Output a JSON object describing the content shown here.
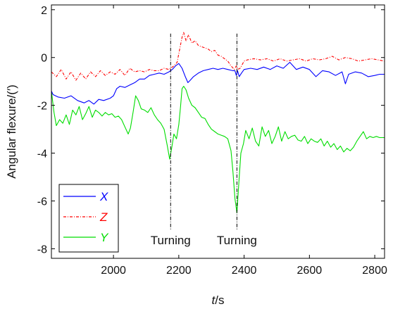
{
  "chart_data": {
    "type": "line",
    "title": "",
    "xlabel": {
      "var": "t",
      "unit": "/s"
    },
    "ylabel": "Angular flexure/(′)",
    "xlim": [
      1810,
      2830
    ],
    "ylim": [
      -8.4,
      2.2
    ],
    "xticks": [
      2000,
      2200,
      2400,
      2600,
      2800
    ],
    "yticks": [
      2,
      0,
      -2,
      -4,
      -6,
      -8
    ],
    "grid": false,
    "legend_position": "bottom-left",
    "series": [
      {
        "name": "X",
        "color": "#0000ff",
        "dash": "solid",
        "points": [
          [
            1810,
            -1.4
          ],
          [
            1815,
            -1.55
          ],
          [
            1830,
            -1.65
          ],
          [
            1850,
            -1.7
          ],
          [
            1870,
            -1.6
          ],
          [
            1890,
            -1.8
          ],
          [
            1910,
            -1.9
          ],
          [
            1925,
            -1.8
          ],
          [
            1940,
            -1.95
          ],
          [
            1955,
            -1.75
          ],
          [
            1970,
            -1.8
          ],
          [
            1990,
            -1.7
          ],
          [
            2000,
            -1.6
          ],
          [
            2010,
            -1.3
          ],
          [
            2020,
            -1.2
          ],
          [
            2035,
            -1.25
          ],
          [
            2050,
            -1.15
          ],
          [
            2065,
            -1.05
          ],
          [
            2080,
            -0.9
          ],
          [
            2095,
            -0.9
          ],
          [
            2110,
            -0.75
          ],
          [
            2125,
            -0.7
          ],
          [
            2140,
            -0.65
          ],
          [
            2155,
            -0.7
          ],
          [
            2170,
            -0.6
          ],
          [
            2180,
            -0.5
          ],
          [
            2190,
            -0.35
          ],
          [
            2200,
            -0.25
          ],
          [
            2210,
            -0.45
          ],
          [
            2220,
            -0.8
          ],
          [
            2228,
            -1.05
          ],
          [
            2235,
            -0.95
          ],
          [
            2245,
            -0.8
          ],
          [
            2260,
            -0.65
          ],
          [
            2275,
            -0.55
          ],
          [
            2290,
            -0.5
          ],
          [
            2305,
            -0.45
          ],
          [
            2320,
            -0.5
          ],
          [
            2335,
            -0.45
          ],
          [
            2350,
            -0.5
          ],
          [
            2365,
            -0.55
          ],
          [
            2372,
            -0.55
          ],
          [
            2376,
            -0.75
          ],
          [
            2380,
            -0.55
          ],
          [
            2385,
            -0.8
          ],
          [
            2392,
            -0.65
          ],
          [
            2400,
            -0.5
          ],
          [
            2420,
            -0.45
          ],
          [
            2440,
            -0.5
          ],
          [
            2460,
            -0.4
          ],
          [
            2480,
            -0.5
          ],
          [
            2500,
            -0.35
          ],
          [
            2520,
            -0.45
          ],
          [
            2540,
            -0.2
          ],
          [
            2560,
            -0.5
          ],
          [
            2580,
            -0.4
          ],
          [
            2600,
            -0.5
          ],
          [
            2620,
            -0.8
          ],
          [
            2640,
            -0.55
          ],
          [
            2660,
            -0.6
          ],
          [
            2680,
            -0.75
          ],
          [
            2700,
            -0.6
          ],
          [
            2710,
            -1.1
          ],
          [
            2720,
            -0.7
          ],
          [
            2740,
            -0.6
          ],
          [
            2760,
            -0.65
          ],
          [
            2780,
            -0.8
          ],
          [
            2800,
            -0.75
          ],
          [
            2815,
            -0.7
          ],
          [
            2830,
            -0.7
          ]
        ]
      },
      {
        "name": "Z",
        "color": "#ff0000",
        "dash": "dashdot",
        "points": [
          [
            1810,
            -0.6
          ],
          [
            1825,
            -0.8
          ],
          [
            1840,
            -0.5
          ],
          [
            1855,
            -0.9
          ],
          [
            1870,
            -0.6
          ],
          [
            1885,
            -0.95
          ],
          [
            1900,
            -0.65
          ],
          [
            1915,
            -0.9
          ],
          [
            1930,
            -0.6
          ],
          [
            1945,
            -0.8
          ],
          [
            1960,
            -0.55
          ],
          [
            1975,
            -0.75
          ],
          [
            1990,
            -0.6
          ],
          [
            2005,
            -0.7
          ],
          [
            2020,
            -0.5
          ],
          [
            2035,
            -0.75
          ],
          [
            2050,
            -0.45
          ],
          [
            2065,
            -0.6
          ],
          [
            2080,
            -0.55
          ],
          [
            2095,
            -0.6
          ],
          [
            2110,
            -0.5
          ],
          [
            2125,
            -0.55
          ],
          [
            2140,
            -0.55
          ],
          [
            2155,
            -0.45
          ],
          [
            2170,
            -0.5
          ],
          [
            2185,
            -0.35
          ],
          [
            2195,
            -0.2
          ],
          [
            2202,
            0.3
          ],
          [
            2210,
            0.85
          ],
          [
            2215,
            1.05
          ],
          [
            2222,
            0.7
          ],
          [
            2230,
            0.95
          ],
          [
            2240,
            0.6
          ],
          [
            2250,
            0.7
          ],
          [
            2260,
            0.5
          ],
          [
            2270,
            0.45
          ],
          [
            2280,
            0.4
          ],
          [
            2290,
            0.35
          ],
          [
            2300,
            0.25
          ],
          [
            2310,
            0.3
          ],
          [
            2320,
            0.1
          ],
          [
            2330,
            0.05
          ],
          [
            2340,
            -0.05
          ],
          [
            2350,
            -0.15
          ],
          [
            2360,
            -0.35
          ],
          [
            2370,
            -0.5
          ],
          [
            2376,
            -0.35
          ],
          [
            2380,
            -0.5
          ],
          [
            2388,
            -0.45
          ],
          [
            2400,
            -0.15
          ],
          [
            2410,
            -0.1
          ],
          [
            2430,
            -0.05
          ],
          [
            2450,
            -0.1
          ],
          [
            2470,
            -0.05
          ],
          [
            2490,
            -0.15
          ],
          [
            2510,
            -0.05
          ],
          [
            2530,
            -0.15
          ],
          [
            2550,
            -0.1
          ],
          [
            2570,
            -0.05
          ],
          [
            2590,
            -0.15
          ],
          [
            2610,
            -0.05
          ],
          [
            2630,
            -0.1
          ],
          [
            2650,
            -0.05
          ],
          [
            2670,
            0.05
          ],
          [
            2690,
            -0.1
          ],
          [
            2710,
            0.0
          ],
          [
            2730,
            -0.05
          ],
          [
            2750,
            -0.15
          ],
          [
            2770,
            -0.1
          ],
          [
            2790,
            -0.05
          ],
          [
            2810,
            -0.1
          ],
          [
            2830,
            -0.15
          ]
        ]
      },
      {
        "name": "Y",
        "color": "#00dd00",
        "dash": "solid",
        "points": [
          [
            1810,
            -1.4
          ],
          [
            1818,
            -2.3
          ],
          [
            1825,
            -2.85
          ],
          [
            1835,
            -2.6
          ],
          [
            1845,
            -2.75
          ],
          [
            1855,
            -2.4
          ],
          [
            1865,
            -2.8
          ],
          [
            1875,
            -2.2
          ],
          [
            1885,
            -2.4
          ],
          [
            1895,
            -2.05
          ],
          [
            1905,
            -2.6
          ],
          [
            1915,
            -2.35
          ],
          [
            1925,
            -2.05
          ],
          [
            1935,
            -2.5
          ],
          [
            1945,
            -2.2
          ],
          [
            1955,
            -2.3
          ],
          [
            1965,
            -2.45
          ],
          [
            1975,
            -2.3
          ],
          [
            1985,
            -2.4
          ],
          [
            1995,
            -2.35
          ],
          [
            2005,
            -2.5
          ],
          [
            2015,
            -2.45
          ],
          [
            2025,
            -2.6
          ],
          [
            2035,
            -2.9
          ],
          [
            2045,
            -3.2
          ],
          [
            2052,
            -2.95
          ],
          [
            2060,
            -2.3
          ],
          [
            2068,
            -1.6
          ],
          [
            2076,
            -1.8
          ],
          [
            2085,
            -2.15
          ],
          [
            2095,
            -2.2
          ],
          [
            2105,
            -2.3
          ],
          [
            2115,
            -2.1
          ],
          [
            2125,
            -2.4
          ],
          [
            2135,
            -2.6
          ],
          [
            2145,
            -2.75
          ],
          [
            2155,
            -3.0
          ],
          [
            2165,
            -3.7
          ],
          [
            2172,
            -4.25
          ],
          [
            2178,
            -3.8
          ],
          [
            2185,
            -3.2
          ],
          [
            2193,
            -3.4
          ],
          [
            2200,
            -2.8
          ],
          [
            2205,
            -2.1
          ],
          [
            2210,
            -1.3
          ],
          [
            2215,
            -1.2
          ],
          [
            2222,
            -1.35
          ],
          [
            2230,
            -1.7
          ],
          [
            2240,
            -2.0
          ],
          [
            2250,
            -2.1
          ],
          [
            2260,
            -2.3
          ],
          [
            2270,
            -2.5
          ],
          [
            2280,
            -2.55
          ],
          [
            2290,
            -2.8
          ],
          [
            2300,
            -3.0
          ],
          [
            2310,
            -3.1
          ],
          [
            2320,
            -3.2
          ],
          [
            2330,
            -3.25
          ],
          [
            2340,
            -3.3
          ],
          [
            2350,
            -3.4
          ],
          [
            2360,
            -3.9
          ],
          [
            2366,
            -4.8
          ],
          [
            2372,
            -5.9
          ],
          [
            2378,
            -6.5
          ],
          [
            2384,
            -5.2
          ],
          [
            2390,
            -4.0
          ],
          [
            2398,
            -3.6
          ],
          [
            2405,
            -3.05
          ],
          [
            2415,
            -3.4
          ],
          [
            2425,
            -2.95
          ],
          [
            2435,
            -3.5
          ],
          [
            2445,
            -3.7
          ],
          [
            2455,
            -2.9
          ],
          [
            2465,
            -3.3
          ],
          [
            2475,
            -3.05
          ],
          [
            2485,
            -3.6
          ],
          [
            2495,
            -3.3
          ],
          [
            2505,
            -2.9
          ],
          [
            2515,
            -3.5
          ],
          [
            2525,
            -3.1
          ],
          [
            2535,
            -3.4
          ],
          [
            2545,
            -3.3
          ],
          [
            2555,
            -3.25
          ],
          [
            2565,
            -3.45
          ],
          [
            2575,
            -3.5
          ],
          [
            2585,
            -3.3
          ],
          [
            2595,
            -3.6
          ],
          [
            2605,
            -3.4
          ],
          [
            2615,
            -3.5
          ],
          [
            2625,
            -3.55
          ],
          [
            2635,
            -3.4
          ],
          [
            2645,
            -3.7
          ],
          [
            2655,
            -3.5
          ],
          [
            2665,
            -3.75
          ],
          [
            2675,
            -3.6
          ],
          [
            2685,
            -3.85
          ],
          [
            2695,
            -3.7
          ],
          [
            2705,
            -3.95
          ],
          [
            2715,
            -3.8
          ],
          [
            2725,
            -3.9
          ],
          [
            2735,
            -3.75
          ],
          [
            2745,
            -3.5
          ],
          [
            2755,
            -3.3
          ],
          [
            2765,
            -3.1
          ],
          [
            2775,
            -3.4
          ],
          [
            2785,
            -3.3
          ],
          [
            2795,
            -3.35
          ],
          [
            2805,
            -3.3
          ],
          [
            2815,
            -3.35
          ],
          [
            2830,
            -3.35
          ]
        ]
      }
    ],
    "annotations": [
      {
        "text": "Turning",
        "x": 2175
      },
      {
        "text": "Turning",
        "x": 2378
      }
    ],
    "marker_lines": {
      "x": [
        2175,
        2378
      ],
      "y_range": [
        -7.2,
        1.0
      ],
      "style": "dashdot",
      "color": "#000000"
    }
  }
}
